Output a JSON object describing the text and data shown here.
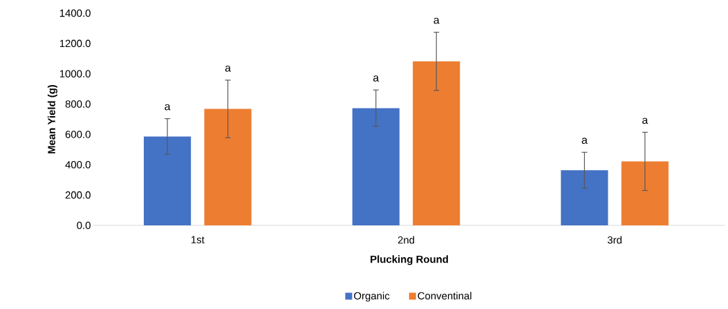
{
  "chart_data": {
    "type": "bar",
    "xlabel": "Plucking Round",
    "ylabel": "Mean Yield (g)",
    "categories": [
      "1st",
      "2nd",
      "3rd"
    ],
    "series": [
      {
        "name": "Organic",
        "color": "#4472c4",
        "values": [
          586,
          773,
          364
        ],
        "errors": [
          118,
          120,
          118
        ]
      },
      {
        "name": "Conventinal",
        "color": "#ed7d31",
        "values": [
          768,
          1082,
          422
        ],
        "errors": [
          190,
          192,
          192
        ]
      }
    ],
    "annotations": [
      "a",
      "a",
      "a",
      "a",
      "a",
      "a"
    ],
    "ylim": [
      0,
      1400
    ],
    "yticks": [
      {
        "value": 0,
        "label": "0.0"
      },
      {
        "value": 200,
        "label": "200.0"
      },
      {
        "value": 400,
        "label": "400.0"
      },
      {
        "value": 600,
        "label": "600.0"
      },
      {
        "value": 800,
        "label": "800.0"
      },
      {
        "value": 1000,
        "label": "1000.0"
      },
      {
        "value": 1200,
        "label": "1200.0"
      },
      {
        "value": 1400,
        "label": "1400.0"
      }
    ],
    "legend": "bottom"
  }
}
